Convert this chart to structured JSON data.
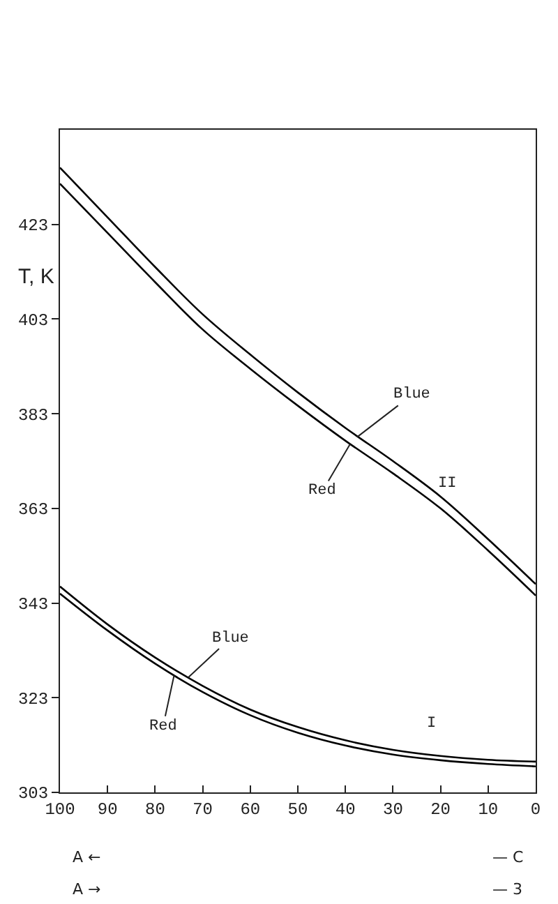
{
  "chart_data": {
    "type": "line",
    "ylabel": "T, K",
    "x": [
      100,
      90,
      80,
      70,
      60,
      50,
      40,
      30,
      20,
      10,
      0
    ],
    "series": [
      {
        "color": "#000000",
        "values": [
          435,
          424.5,
          414,
          404,
          395.5,
          387.5,
          380,
          373,
          365.5,
          356.5,
          347
        ]
      },
      {
        "color": "#000000",
        "values": [
          431.6,
          421.2,
          410.8,
          400.8,
          392.5,
          384.7,
          377.3,
          370.4,
          363,
          354.1,
          344.6
        ]
      },
      {
        "color": "#000000",
        "values": [
          346.5,
          338.5,
          331.5,
          325.5,
          320.5,
          316.8,
          314,
          312,
          310.7,
          309.9,
          309.5
        ]
      },
      {
        "color": "#000000",
        "values": [
          345,
          337.2,
          330.2,
          324.2,
          319.3,
          315.6,
          312.9,
          311,
          309.8,
          309,
          308.5
        ]
      }
    ],
    "xlim": [
      100,
      0
    ],
    "xticks": [
      100,
      90,
      80,
      70,
      60,
      50,
      40,
      30,
      20,
      10,
      0
    ],
    "ylim": [
      303,
      443
    ],
    "yticks": [
      303,
      323,
      343,
      363,
      383,
      403,
      423
    ],
    "legend": false,
    "marker": "none",
    "line_style": "solid",
    "annotations": [
      {
        "text": "Blue",
        "x": 37.5,
        "y": 378.1
      },
      {
        "text": "Red",
        "x": 39,
        "y": 376.6
      },
      {
        "text": "Blue",
        "x": 73,
        "y": 327.3
      },
      {
        "text": "Red",
        "x": 76,
        "y": 327.8
      },
      "II",
      "I",
      "A ←",
      "A →",
      "— C",
      "— 3"
    ]
  }
}
